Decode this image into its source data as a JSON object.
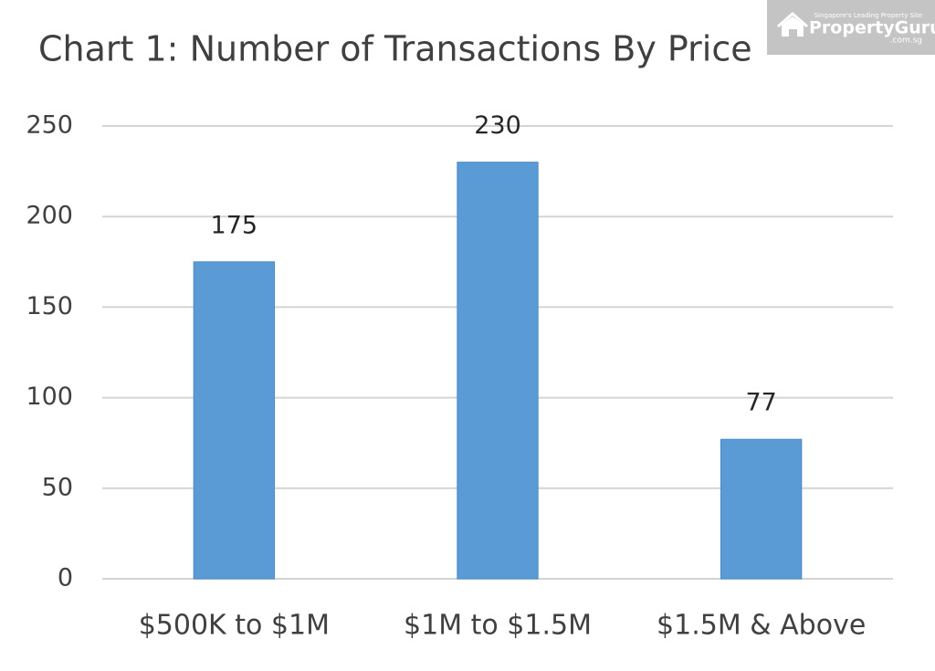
{
  "chart_data": {
    "type": "bar",
    "title": "Chart 1: Number of Transactions By Price",
    "categories": [
      "$500K to $1M",
      "$1M to $1.5M",
      "$1.5M & Above"
    ],
    "values": [
      175,
      230,
      77
    ],
    "color": "#5b9bd5",
    "ylim": [
      0,
      250
    ],
    "yticks": [
      0,
      50,
      100,
      150,
      200,
      250
    ],
    "grid": true,
    "data_labels": true
  },
  "watermark": {
    "tagline": "Singapore's Leading Property Site",
    "brand": "PropertyGuru",
    "domain": ".com.sg"
  }
}
